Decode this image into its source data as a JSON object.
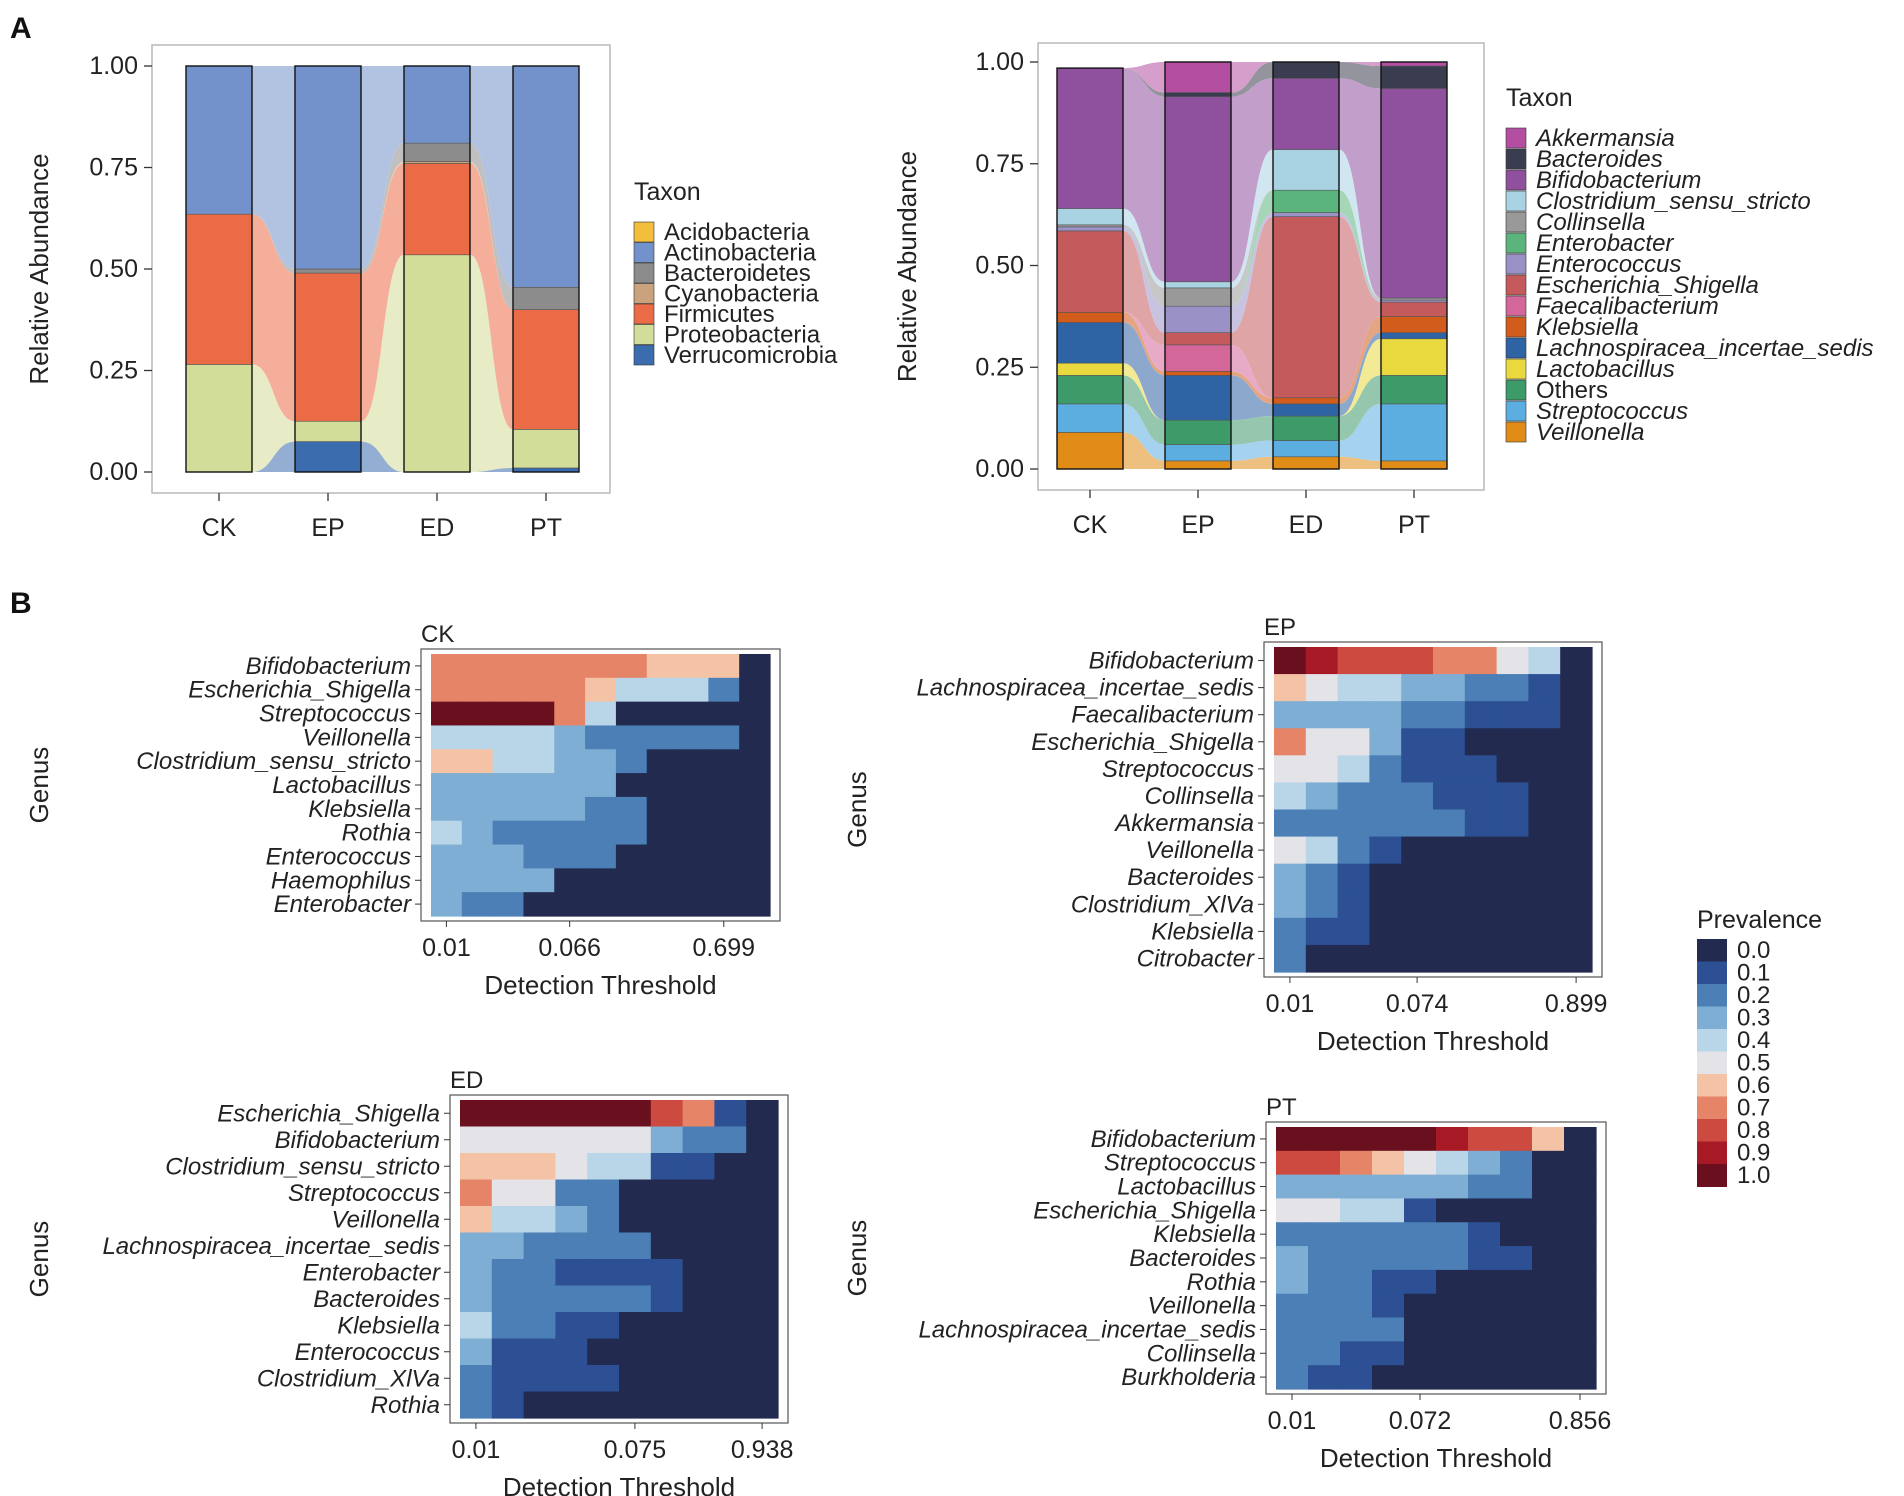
{
  "panel_labels": {
    "a": "A",
    "b": "B"
  },
  "chart_data": [
    {
      "type": "bar",
      "subtype": "stacked-alluvial",
      "id": "A-left",
      "xlabel": "",
      "ylabel": "Relative Abundance",
      "ylim": [
        0,
        1
      ],
      "yticks": [
        "0.00",
        "0.25",
        "0.50",
        "0.75",
        "1.00"
      ],
      "categories": [
        "CK",
        "EP",
        "ED",
        "PT"
      ],
      "legend_title": "Taxon",
      "legend": [
        {
          "name": "Acidobacteria",
          "color": "#f2be3c"
        },
        {
          "name": "Actinobacteria",
          "color": "#7391cb"
        },
        {
          "name": "Bacteroidetes",
          "color": "#8c8c8c"
        },
        {
          "name": "Cyanobacteria",
          "color": "#caa37e"
        },
        {
          "name": "Firmicutes",
          "color": "#ec6b47"
        },
        {
          "name": "Proteobacteria",
          "color": "#d3dd9a"
        },
        {
          "name": "Verrucomicrobia",
          "color": "#3a6cae"
        }
      ],
      "stack_order": [
        "Verrucomicrobia",
        "Proteobacteria",
        "Firmicutes",
        "Cyanobacteria",
        "Bacteroidetes",
        "Acidobacteria",
        "Actinobacteria"
      ],
      "series": [
        {
          "name": "Verrucomicrobia",
          "values": [
            0.0,
            0.075,
            0.0,
            0.01
          ]
        },
        {
          "name": "Proteobacteria",
          "values": [
            0.265,
            0.05,
            0.535,
            0.095
          ]
        },
        {
          "name": "Firmicutes",
          "values": [
            0.37,
            0.365,
            0.225,
            0.295
          ]
        },
        {
          "name": "Cyanobacteria",
          "values": [
            0.0,
            0.0,
            0.005,
            0.0
          ]
        },
        {
          "name": "Bacteroidetes",
          "values": [
            0.0,
            0.01,
            0.045,
            0.055
          ]
        },
        {
          "name": "Acidobacteria",
          "values": [
            0.0,
            0.0,
            0.0,
            0.0
          ]
        },
        {
          "name": "Actinobacteria",
          "values": [
            0.365,
            0.5,
            0.19,
            0.545
          ]
        }
      ]
    },
    {
      "type": "bar",
      "subtype": "stacked-alluvial",
      "id": "A-right",
      "xlabel": "",
      "ylabel": "Relative Abundance",
      "ylim": [
        0,
        1
      ],
      "yticks": [
        "0.00",
        "0.25",
        "0.50",
        "0.75",
        "1.00"
      ],
      "categories": [
        "CK",
        "EP",
        "ED",
        "PT"
      ],
      "legend_title": "Taxon",
      "legend": [
        {
          "name": "Akkermansia",
          "color": "#b44ea0",
          "italic": true
        },
        {
          "name": "Bacteroides",
          "color": "#3a3d4f",
          "italic": true
        },
        {
          "name": "Bifidobacterium",
          "color": "#8f509e",
          "italic": true
        },
        {
          "name": "Clostridium_sensu_stricto",
          "color": "#a9d2e3",
          "italic": true
        },
        {
          "name": "Collinsella",
          "color": "#999999",
          "italic": true
        },
        {
          "name": "Enterobacter",
          "color": "#5cb47d",
          "italic": true
        },
        {
          "name": "Enterococcus",
          "color": "#9a91c6",
          "italic": true
        },
        {
          "name": "Escherichia_Shigella",
          "color": "#c55a5c",
          "italic": true
        },
        {
          "name": "Faecalibacterium",
          "color": "#d4679a",
          "italic": true
        },
        {
          "name": "Klebsiella",
          "color": "#d25c1b",
          "italic": true
        },
        {
          "name": "Lachnospiracea_incertae_sedis",
          "color": "#2e63a4",
          "italic": true
        },
        {
          "name": "Lactobacillus",
          "color": "#e9d83e",
          "italic": true
        },
        {
          "name": "Others",
          "color": "#3d9a69",
          "italic": false
        },
        {
          "name": "Streptococcus",
          "color": "#5caee0",
          "italic": true
        },
        {
          "name": "Veillonella",
          "color": "#e08c17",
          "italic": true
        }
      ],
      "stack_order": [
        "Veillonella",
        "Streptococcus",
        "Others",
        "Lactobacillus",
        "Lachnospiracea_incertae_sedis",
        "Klebsiella",
        "Faecalibacterium",
        "Escherichia_Shigella",
        "Enterococcus",
        "Enterobacter",
        "Collinsella",
        "Clostridium_sensu_stricto",
        "Bifidobacterium",
        "Bacteroides",
        "Akkermansia"
      ],
      "series": [
        {
          "name": "Veillonella",
          "values": [
            0.09,
            0.02,
            0.03,
            0.02
          ]
        },
        {
          "name": "Streptococcus",
          "values": [
            0.07,
            0.04,
            0.04,
            0.14
          ]
        },
        {
          "name": "Others",
          "values": [
            0.07,
            0.06,
            0.06,
            0.07
          ]
        },
        {
          "name": "Lactobacillus",
          "values": [
            0.03,
            0.0,
            0.0,
            0.09
          ]
        },
        {
          "name": "Lachnospiracea_incertae_sedis",
          "values": [
            0.1,
            0.11,
            0.03,
            0.015
          ]
        },
        {
          "name": "Klebsiella",
          "values": [
            0.025,
            0.01,
            0.015,
            0.04
          ]
        },
        {
          "name": "Faecalibacterium",
          "values": [
            0.0,
            0.065,
            0.0,
            0.0
          ]
        },
        {
          "name": "Escherichia_Shigella",
          "values": [
            0.2,
            0.03,
            0.445,
            0.035
          ]
        },
        {
          "name": "Enterococcus",
          "values": [
            0.01,
            0.065,
            0.01,
            0.005
          ]
        },
        {
          "name": "Enterobacter",
          "values": [
            0.0,
            0.0,
            0.055,
            0.0
          ]
        },
        {
          "name": "Collinsella",
          "values": [
            0.005,
            0.045,
            0.0,
            0.005
          ]
        },
        {
          "name": "Clostridium_sensu_stricto",
          "values": [
            0.04,
            0.015,
            0.1,
            0.0
          ]
        },
        {
          "name": "Bifidobacterium",
          "values": [
            0.345,
            0.455,
            0.175,
            0.515
          ]
        },
        {
          "name": "Bacteroides",
          "values": [
            0.0,
            0.01,
            0.04,
            0.055
          ]
        },
        {
          "name": "Akkermansia",
          "values": [
            0.0,
            0.075,
            0.0,
            0.01
          ]
        }
      ]
    },
    {
      "type": "heatmap",
      "id": "B-CK",
      "title": "CK",
      "xlabel": "Detection Threshold",
      "ylabel": "Genus",
      "xticks": [
        "0.01",
        "0.066",
        "0.699"
      ],
      "xtick_columns": [
        1,
        5,
        10
      ],
      "legend_title": "Prevalence",
      "rows": [
        "Bifidobacterium",
        "Escherichia_Shigella",
        "Streptococcus",
        "Veillonella",
        "Clostridium_sensu_stricto",
        "Lactobacillus",
        "Klebsiella",
        "Rothia",
        "Enterococcus",
        "Haemophilus",
        "Enterobacter"
      ],
      "values": [
        [
          0.7,
          0.7,
          0.7,
          0.7,
          0.7,
          0.7,
          0.7,
          0.6,
          0.6,
          0.6,
          0.0
        ],
        [
          0.7,
          0.7,
          0.7,
          0.7,
          0.7,
          0.6,
          0.4,
          0.4,
          0.4,
          0.2,
          0.0
        ],
        [
          1.0,
          1.0,
          1.0,
          1.0,
          0.7,
          0.4,
          0.0,
          0.0,
          0.0,
          0.0,
          0.0
        ],
        [
          0.4,
          0.4,
          0.4,
          0.4,
          0.3,
          0.2,
          0.2,
          0.2,
          0.2,
          0.2,
          0.0
        ],
        [
          0.6,
          0.6,
          0.4,
          0.4,
          0.3,
          0.3,
          0.2,
          0.0,
          0.0,
          0.0,
          0.0
        ],
        [
          0.3,
          0.3,
          0.3,
          0.3,
          0.3,
          0.3,
          0.0,
          0.0,
          0.0,
          0.0,
          0.0
        ],
        [
          0.3,
          0.3,
          0.3,
          0.3,
          0.3,
          0.2,
          0.2,
          0.0,
          0.0,
          0.0,
          0.0
        ],
        [
          0.4,
          0.3,
          0.2,
          0.2,
          0.2,
          0.2,
          0.2,
          0.0,
          0.0,
          0.0,
          0.0
        ],
        [
          0.3,
          0.3,
          0.3,
          0.2,
          0.2,
          0.2,
          0.0,
          0.0,
          0.0,
          0.0,
          0.0
        ],
        [
          0.3,
          0.3,
          0.3,
          0.3,
          0.0,
          0.0,
          0.0,
          0.0,
          0.0,
          0.0,
          0.0
        ],
        [
          0.3,
          0.2,
          0.2,
          0.0,
          0.0,
          0.0,
          0.0,
          0.0,
          0.0,
          0.0,
          0.0
        ]
      ]
    },
    {
      "type": "heatmap",
      "id": "B-EP",
      "title": "EP",
      "xlabel": "Detection Threshold",
      "ylabel": "Genus",
      "xticks": [
        "0.01",
        "0.074",
        "0.899"
      ],
      "xtick_columns": [
        1,
        5,
        10
      ],
      "legend_title": "Prevalence",
      "rows": [
        "Bifidobacterium",
        "Lachnospiracea_incertae_sedis",
        "Faecalibacterium",
        "Escherichia_Shigella",
        "Streptococcus",
        "Collinsella",
        "Akkermansia",
        "Veillonella",
        "Bacteroides",
        "Clostridium_XlVa",
        "Klebsiella",
        "Citrobacter"
      ],
      "values": [
        [
          1.0,
          0.9,
          0.8,
          0.8,
          0.8,
          0.7,
          0.7,
          0.5,
          0.4,
          0.0
        ],
        [
          0.6,
          0.5,
          0.4,
          0.4,
          0.3,
          0.3,
          0.2,
          0.2,
          0.1,
          0.0
        ],
        [
          0.3,
          0.3,
          0.3,
          0.3,
          0.2,
          0.2,
          0.1,
          0.1,
          0.1,
          0.0
        ],
        [
          0.7,
          0.5,
          0.5,
          0.3,
          0.1,
          0.1,
          0.0,
          0.0,
          0.0,
          0.0
        ],
        [
          0.5,
          0.5,
          0.4,
          0.2,
          0.1,
          0.1,
          0.1,
          0.0,
          0.0,
          0.0
        ],
        [
          0.4,
          0.3,
          0.2,
          0.2,
          0.2,
          0.1,
          0.1,
          0.1,
          0.0,
          0.0
        ],
        [
          0.2,
          0.2,
          0.2,
          0.2,
          0.2,
          0.2,
          0.1,
          0.1,
          0.0,
          0.0
        ],
        [
          0.5,
          0.4,
          0.2,
          0.1,
          0.0,
          0.0,
          0.0,
          0.0,
          0.0,
          0.0
        ],
        [
          0.3,
          0.2,
          0.1,
          0.0,
          0.0,
          0.0,
          0.0,
          0.0,
          0.0,
          0.0
        ],
        [
          0.3,
          0.2,
          0.1,
          0.0,
          0.0,
          0.0,
          0.0,
          0.0,
          0.0,
          0.0
        ],
        [
          0.2,
          0.1,
          0.1,
          0.0,
          0.0,
          0.0,
          0.0,
          0.0,
          0.0,
          0.0
        ],
        [
          0.2,
          0.0,
          0.0,
          0.0,
          0.0,
          0.0,
          0.0,
          0.0,
          0.0,
          0.0
        ]
      ]
    },
    {
      "type": "heatmap",
      "id": "B-ED",
      "title": "ED",
      "xlabel": "Detection Threshold",
      "ylabel": "Genus",
      "xticks": [
        "0.01",
        "0.075",
        "0.938"
      ],
      "xtick_columns": [
        1,
        6,
        10
      ],
      "legend_title": "Prevalence",
      "rows": [
        "Escherichia_Shigella",
        "Bifidobacterium",
        "Clostridium_sensu_stricto",
        "Streptococcus",
        "Veillonella",
        "Lachnospiracea_incertae_sedis",
        "Enterobacter",
        "Bacteroides",
        "Klebsiella",
        "Enterococcus",
        "Clostridium_XlVa",
        "Rothia"
      ],
      "values": [
        [
          1.0,
          1.0,
          1.0,
          1.0,
          1.0,
          1.0,
          0.8,
          0.7,
          0.1,
          0.0
        ],
        [
          0.5,
          0.5,
          0.5,
          0.5,
          0.5,
          0.5,
          0.3,
          0.2,
          0.2,
          0.0
        ],
        [
          0.6,
          0.6,
          0.6,
          0.5,
          0.4,
          0.4,
          0.1,
          0.1,
          0.0,
          0.0
        ],
        [
          0.7,
          0.5,
          0.5,
          0.2,
          0.2,
          0.0,
          0.0,
          0.0,
          0.0,
          0.0
        ],
        [
          0.6,
          0.4,
          0.4,
          0.3,
          0.2,
          0.0,
          0.0,
          0.0,
          0.0,
          0.0
        ],
        [
          0.3,
          0.3,
          0.2,
          0.2,
          0.2,
          0.2,
          0.0,
          0.0,
          0.0,
          0.0
        ],
        [
          0.3,
          0.2,
          0.2,
          0.1,
          0.1,
          0.1,
          0.1,
          0.0,
          0.0,
          0.0
        ],
        [
          0.3,
          0.2,
          0.2,
          0.2,
          0.2,
          0.2,
          0.1,
          0.0,
          0.0,
          0.0
        ],
        [
          0.4,
          0.2,
          0.2,
          0.1,
          0.1,
          0.0,
          0.0,
          0.0,
          0.0,
          0.0
        ],
        [
          0.3,
          0.1,
          0.1,
          0.1,
          0.0,
          0.0,
          0.0,
          0.0,
          0.0,
          0.0
        ],
        [
          0.2,
          0.1,
          0.1,
          0.1,
          0.1,
          0.0,
          0.0,
          0.0,
          0.0,
          0.0
        ],
        [
          0.2,
          0.1,
          0.0,
          0.0,
          0.0,
          0.0,
          0.0,
          0.0,
          0.0,
          0.0
        ]
      ]
    },
    {
      "type": "heatmap",
      "id": "B-PT",
      "title": "PT",
      "xlabel": "Detection Threshold",
      "ylabel": "Genus",
      "xticks": [
        "0.01",
        "0.072",
        "0.856"
      ],
      "xtick_columns": [
        1,
        5,
        10
      ],
      "legend_title": "Prevalence",
      "rows": [
        "Bifidobacterium",
        "Streptococcus",
        "Lactobacillus",
        "Escherichia_Shigella",
        "Klebsiella",
        "Bacteroides",
        "Rothia",
        "Veillonella",
        "Lachnospiracea_incertae_sedis",
        "Collinsella",
        "Burkholderia"
      ],
      "values": [
        [
          1.0,
          1.0,
          1.0,
          1.0,
          1.0,
          0.9,
          0.8,
          0.8,
          0.6,
          0.0
        ],
        [
          0.8,
          0.8,
          0.7,
          0.6,
          0.5,
          0.4,
          0.3,
          0.2,
          0.0,
          0.0
        ],
        [
          0.3,
          0.3,
          0.3,
          0.3,
          0.3,
          0.3,
          0.2,
          0.2,
          0.0,
          0.0
        ],
        [
          0.5,
          0.5,
          0.4,
          0.4,
          0.1,
          0.0,
          0.0,
          0.0,
          0.0,
          0.0
        ],
        [
          0.2,
          0.2,
          0.2,
          0.2,
          0.2,
          0.2,
          0.1,
          0.0,
          0.0,
          0.0
        ],
        [
          0.3,
          0.2,
          0.2,
          0.2,
          0.2,
          0.2,
          0.1,
          0.1,
          0.0,
          0.0
        ],
        [
          0.3,
          0.2,
          0.2,
          0.1,
          0.1,
          0.0,
          0.0,
          0.0,
          0.0,
          0.0
        ],
        [
          0.2,
          0.2,
          0.2,
          0.1,
          0.0,
          0.0,
          0.0,
          0.0,
          0.0,
          0.0
        ],
        [
          0.2,
          0.2,
          0.2,
          0.2,
          0.0,
          0.0,
          0.0,
          0.0,
          0.0,
          0.0
        ],
        [
          0.2,
          0.2,
          0.1,
          0.1,
          0.0,
          0.0,
          0.0,
          0.0,
          0.0,
          0.0
        ],
        [
          0.2,
          0.1,
          0.1,
          0.0,
          0.0,
          0.0,
          0.0,
          0.0,
          0.0,
          0.0
        ]
      ]
    }
  ],
  "prevalence_legend": {
    "title": "Prevalence",
    "levels": [
      {
        "label": "0.0",
        "value": 0.0,
        "color": "#222b4f"
      },
      {
        "label": "0.1",
        "value": 0.1,
        "color": "#2d5095"
      },
      {
        "label": "0.2",
        "value": 0.2,
        "color": "#4b7fb6"
      },
      {
        "label": "0.3",
        "value": 0.3,
        "color": "#7eaed3"
      },
      {
        "label": "0.4",
        "value": 0.4,
        "color": "#b9d5e8"
      },
      {
        "label": "0.5",
        "value": 0.5,
        "color": "#e4e3e7"
      },
      {
        "label": "0.6",
        "value": 0.6,
        "color": "#f4c2a5"
      },
      {
        "label": "0.7",
        "value": 0.7,
        "color": "#e58467"
      },
      {
        "label": "0.8",
        "value": 0.8,
        "color": "#cc4a3f"
      },
      {
        "label": "0.9",
        "value": 0.9,
        "color": "#a71a25"
      },
      {
        "label": "1.0",
        "value": 1.0,
        "color": "#6a0f1e"
      }
    ]
  }
}
